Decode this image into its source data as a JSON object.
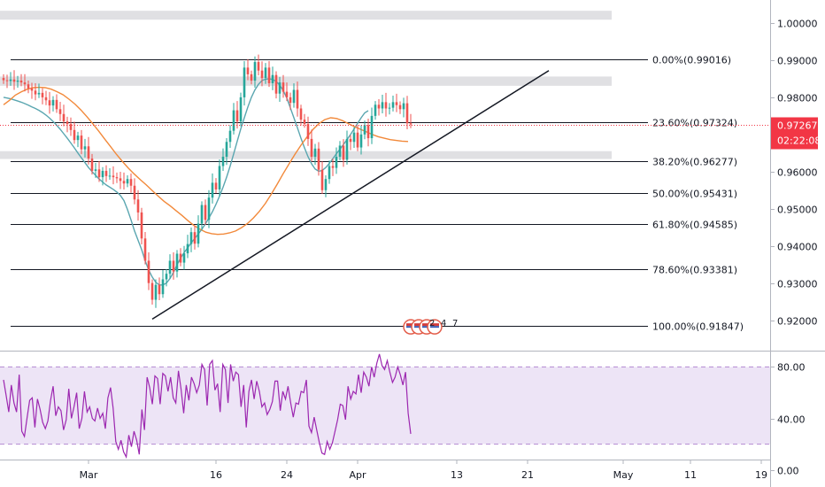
{
  "chart_data": [
    {
      "type": "candlestick",
      "yaxis": {
        "range": [
          0.9118,
          1.0062
        ],
        "ticks": [
          "1.00000",
          "0.99000",
          "0.98000",
          "0.97000",
          "0.96000",
          "0.95000",
          "0.94000",
          "0.93000",
          "0.92000"
        ]
      },
      "xaxis": {
        "labels": [
          {
            "label": "Mar",
            "bar": 24
          },
          {
            "label": "16",
            "bar": 60
          },
          {
            "label": "24",
            "bar": 80
          },
          {
            "label": "Apr",
            "bar": 100
          },
          {
            "label": "13",
            "bar": 128
          },
          {
            "label": "21",
            "bar": 148
          },
          {
            "label": "May",
            "bar": 175
          },
          {
            "label": "11",
            "bar": 194
          },
          {
            "label": "19",
            "bar": 214
          }
        ]
      },
      "last_price": {
        "value": 0.97267,
        "label": "0.97267",
        "countdown": "02:22:08",
        "color": "#f23645"
      },
      "fibonacci": {
        "start_bar": 2,
        "end_bar": 183,
        "levels": [
          {
            "label": "0.00%(0.99016)",
            "value": 0.99016
          },
          {
            "label": "23.60%(0.97324)",
            "value": 0.97324
          },
          {
            "label": "38.20%(0.96277)",
            "value": 0.96277
          },
          {
            "label": "50.00%(0.95431)",
            "value": 0.95431
          },
          {
            "label": "61.80%(0.94585)",
            "value": 0.94585
          },
          {
            "label": "78.60%(0.93381)",
            "value": 0.93381
          },
          {
            "label": "100.00%(0.91847)",
            "value": 0.91847
          }
        ]
      },
      "zones": [
        {
          "from": 1.0009,
          "to": 1.0033
        },
        {
          "from": 0.9831,
          "to": 0.9856
        },
        {
          "from": 0.9634,
          "to": 0.9655
        }
      ],
      "trendline": {
        "from": {
          "bar": 42,
          "value": 0.9203
        },
        "to": {
          "bar": 154,
          "value": 0.9872
        }
      },
      "moving_averages": [
        {
          "color": "#5aa6b0",
          "period": 10
        },
        {
          "color": "#f2893a",
          "period": 30
        }
      ],
      "colors": {
        "up": "#26a69a",
        "down": "#ef5350",
        "zone": "#e0e0e3",
        "fib": "#131722"
      },
      "events": {
        "labels": [
          "2",
          "4",
          "7"
        ],
        "bar": 119,
        "value": 0.9182
      },
      "closes": [
        0.9846,
        0.9844,
        0.9848,
        0.9842,
        0.9845,
        0.984,
        0.9835,
        0.9824,
        0.9818,
        0.9808,
        0.9812,
        0.98,
        0.9792,
        0.9778,
        0.9793,
        0.9768,
        0.9755,
        0.9735,
        0.9728,
        0.9712,
        0.9685,
        0.9697,
        0.966,
        0.9668,
        0.9635,
        0.9602,
        0.9606,
        0.9585,
        0.9602,
        0.9588,
        0.9589,
        0.9585,
        0.9582,
        0.9575,
        0.9568,
        0.958,
        0.9562,
        0.9525,
        0.949,
        0.942,
        0.936,
        0.93,
        0.9255,
        0.9295,
        0.927,
        0.931,
        0.9325,
        0.936,
        0.9331,
        0.9379,
        0.9355,
        0.938,
        0.9405,
        0.9437,
        0.9406,
        0.946,
        0.951,
        0.947,
        0.953,
        0.957,
        0.9552,
        0.9615,
        0.964,
        0.968,
        0.971,
        0.9765,
        0.9735,
        0.98,
        0.988,
        0.9862,
        0.9845,
        0.9895,
        0.9872,
        0.9852,
        0.988,
        0.9838,
        0.986,
        0.981,
        0.984,
        0.9815,
        0.98,
        0.9785,
        0.982,
        0.977,
        0.974,
        0.9728,
        0.9688,
        0.964,
        0.9662,
        0.9605,
        0.955,
        0.958,
        0.9615,
        0.961,
        0.964,
        0.967,
        0.9632,
        0.9688,
        0.968,
        0.9705,
        0.9665,
        0.97,
        0.9725,
        0.969,
        0.975,
        0.978,
        0.977,
        0.9787,
        0.977,
        0.9772,
        0.9787,
        0.9779,
        0.9768,
        0.9784,
        0.973,
        0.9727
      ],
      "ma10": [
        0.98,
        0.9798,
        0.9796,
        0.9793,
        0.979,
        0.9787,
        0.9783,
        0.9779,
        0.9774,
        0.977,
        0.9765,
        0.9759,
        0.9752,
        0.9744,
        0.9735,
        0.9725,
        0.9714,
        0.9702,
        0.969,
        0.9677,
        0.9664,
        0.965,
        0.9637,
        0.9624,
        0.9611,
        0.96,
        0.959,
        0.958,
        0.9572,
        0.9564,
        0.9558,
        0.9552,
        0.9545,
        0.9536,
        0.9522,
        0.9498,
        0.947,
        0.944,
        0.9415,
        0.939,
        0.936,
        0.9335,
        0.9316,
        0.9302,
        0.9295,
        0.9295,
        0.93,
        0.9312,
        0.9329,
        0.9349,
        0.9367,
        0.9382,
        0.9395,
        0.9408,
        0.942,
        0.9432,
        0.9445,
        0.9459,
        0.9475,
        0.9492,
        0.9512,
        0.9534,
        0.9558,
        0.9585,
        0.9615,
        0.9648,
        0.9682,
        0.9715,
        0.9745,
        0.9774,
        0.98,
        0.982,
        0.9835,
        0.9845,
        0.9849,
        0.985,
        0.9848,
        0.9843,
        0.9833,
        0.9818,
        0.9798,
        0.9772,
        0.9745,
        0.9718,
        0.969,
        0.9664,
        0.964,
        0.9621,
        0.9607,
        0.9601,
        0.9603,
        0.9611,
        0.9622,
        0.9635,
        0.9648,
        0.966,
        0.9673,
        0.9686,
        0.97,
        0.9715,
        0.973,
        0.9745,
        0.9758,
        0.9764
      ],
      "ma30": [
        0.978,
        0.9792,
        0.9806,
        0.9815,
        0.9822,
        0.9826,
        0.9827,
        0.9826,
        0.9822,
        0.9815,
        0.9807,
        0.9795,
        0.9782,
        0.9766,
        0.9748,
        0.9729,
        0.9709,
        0.9688,
        0.9667,
        0.9646,
        0.9627,
        0.9609,
        0.9593,
        0.9578,
        0.9564,
        0.9549,
        0.9534,
        0.952,
        0.9508,
        0.9495,
        0.9482,
        0.9468,
        0.9455,
        0.9445,
        0.9437,
        0.9433,
        0.9431,
        0.9432,
        0.9435,
        0.944,
        0.9449,
        0.946,
        0.9475,
        0.9493,
        0.9514,
        0.9539,
        0.9566,
        0.9594,
        0.9621,
        0.9647,
        0.9671,
        0.9693,
        0.9713,
        0.9729,
        0.974,
        0.9745,
        0.9743,
        0.9737,
        0.9729,
        0.9721,
        0.9714,
        0.9707,
        0.97,
        0.9694,
        0.969,
        0.9686,
        0.9684,
        0.9682,
        0.9681
      ]
    },
    {
      "type": "line",
      "name_hidden": true,
      "yaxis": {
        "range": [
          8,
          92
        ],
        "ticks": [
          "80.00",
          "40.00",
          "0.00"
        ],
        "band": [
          20,
          80
        ]
      },
      "colors": {
        "line": "#9c27b0",
        "band": "#ede4f6",
        "bound": "#b48ad1"
      },
      "values": [
        70,
        58,
        45,
        66,
        52,
        45,
        74,
        30,
        26,
        40,
        54,
        56,
        33,
        55,
        47,
        37,
        32,
        38,
        54,
        65,
        42,
        49,
        46,
        31,
        39,
        63,
        40,
        49,
        60,
        32,
        40,
        61,
        45,
        49,
        40,
        38,
        48,
        40,
        44,
        32,
        56,
        64,
        48,
        22,
        16,
        23,
        14,
        10,
        27,
        18,
        30,
        23,
        12,
        47,
        31,
        72,
        64,
        51,
        73,
        71,
        51,
        75,
        73,
        61,
        72,
        56,
        52,
        77,
        63,
        44,
        66,
        54,
        72,
        67,
        60,
        66,
        82,
        78,
        50,
        82,
        85,
        62,
        67,
        45,
        82,
        78,
        52,
        82,
        69,
        76,
        74,
        49,
        66,
        33,
        61,
        70,
        55,
        69,
        61,
        49,
        52,
        43,
        47,
        53,
        69,
        69,
        46,
        61,
        55,
        65,
        52,
        41,
        52,
        51,
        61,
        60,
        70,
        34,
        29,
        41,
        31,
        21,
        13,
        12,
        22,
        16,
        21,
        30,
        39,
        51,
        50,
        39,
        65,
        55,
        61,
        59,
        74,
        60,
        76,
        72,
        65,
        80,
        72,
        83,
        90,
        81,
        78,
        85,
        76,
        68,
        72,
        80,
        74,
        66,
        76,
        44,
        28
      ]
    }
  ]
}
